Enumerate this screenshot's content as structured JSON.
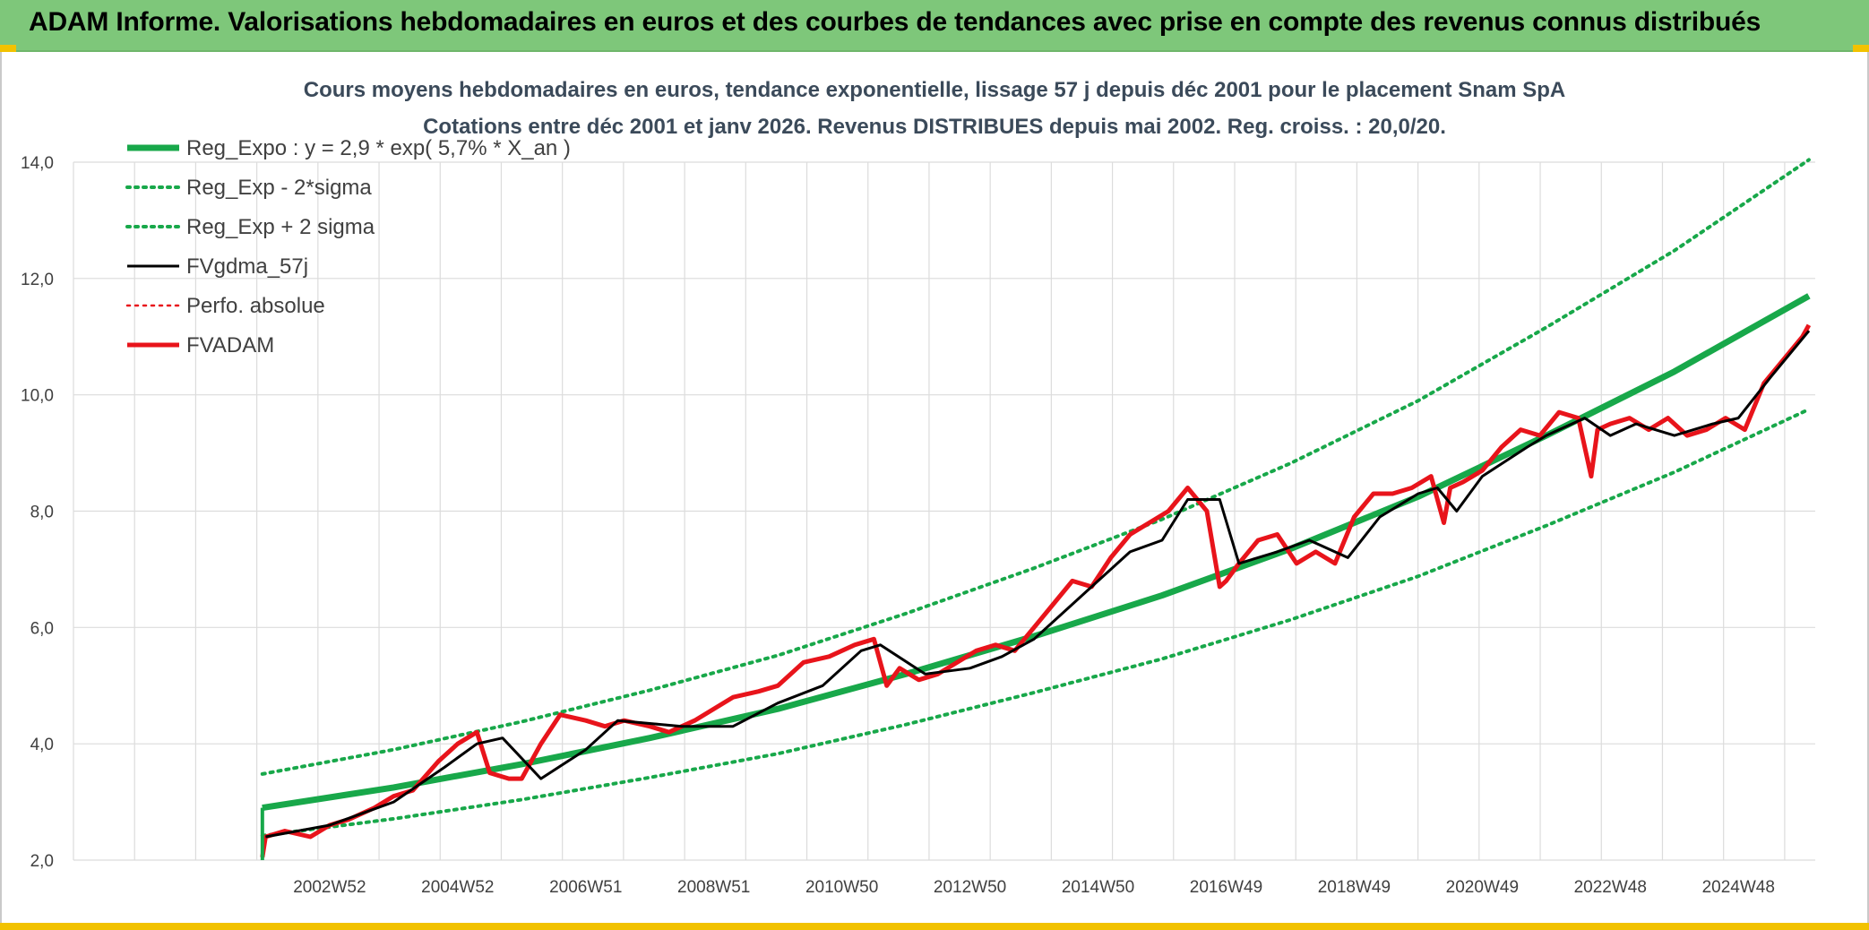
{
  "banner": {
    "title": "ADAM Informe. Valorisations hebdomadaires en euros et des courbes de tendances avec prise en compte des revenus connus distribués"
  },
  "colors": {
    "banner_bg": "#7ec77a",
    "trend": "#18a84a",
    "fvgdma": "#000000",
    "fvadam": "#e8141b",
    "perfo": "#e8141b",
    "grid": "#dcdcdc"
  },
  "chart_data": {
    "type": "line",
    "title": "Cours moyens hebdomadaires en euros, tendance exponentielle, lissage 57 j depuis déc 2001 pour le placement Snam SpA",
    "subtitle": "Cotations entre déc 2001 et janv 2026. Revenus DISTRIBUES depuis mai 2002. Reg. croiss. : 20,0/20.",
    "xlabel": "",
    "ylabel": "",
    "ylim": [
      2.0,
      14.0
    ],
    "xlim": [
      1999.0,
      2026.2
    ],
    "y_ticks": [
      "2,0",
      "4,0",
      "6,0",
      "8,0",
      "10,0",
      "12,0",
      "14,0"
    ],
    "y_tick_values": [
      2,
      4,
      6,
      8,
      10,
      12,
      14
    ],
    "x_ticks": [
      "2002W52",
      "2004W52",
      "2006W51",
      "2008W51",
      "2010W50",
      "2012W50",
      "2014W50",
      "2016W49",
      "2018W49",
      "2020W49",
      "2022W48",
      "2024W48"
    ],
    "x_tick_values": [
      2003.0,
      2005.0,
      2007.0,
      2009.0,
      2011.0,
      2013.0,
      2015.0,
      2017.0,
      2019.0,
      2021.0,
      2023.0,
      2025.0
    ],
    "grid": true,
    "legend_position": "top-left",
    "regression": {
      "a": 2.9,
      "rate": 0.057,
      "start": 2001.95,
      "end": 2026.1,
      "sigma_factor": 1.2
    },
    "series": [
      {
        "name": "Reg_Expo : y = 2,9 * exp( 5,7% *  X_an )",
        "style": "solid-thick",
        "color": "#18a84a",
        "x": [
          2001.95,
          2004.0,
          2006.0,
          2008.0,
          2010.0,
          2012.0,
          2014.0,
          2016.0,
          2018.0,
          2020.0,
          2022.0,
          2024.0,
          2026.1
        ],
        "values": [
          2.9,
          3.25,
          3.65,
          4.1,
          4.6,
          5.2,
          5.85,
          6.55,
          7.35,
          8.25,
          9.3,
          10.4,
          11.7
        ]
      },
      {
        "name": "Reg_Exp - 2*sigma",
        "style": "dotted",
        "color": "#18a84a",
        "x": [
          2001.95,
          2004.0,
          2006.0,
          2008.0,
          2010.0,
          2012.0,
          2014.0,
          2016.0,
          2018.0,
          2020.0,
          2022.0,
          2024.0,
          2026.1
        ],
        "values": [
          2.42,
          2.71,
          3.04,
          3.42,
          3.83,
          4.33,
          4.88,
          5.46,
          6.13,
          6.88,
          7.75,
          8.67,
          9.75
        ]
      },
      {
        "name": "Reg_Exp + 2 sigma",
        "style": "dotted",
        "color": "#18a84a",
        "x": [
          2001.95,
          2004.0,
          2006.0,
          2008.0,
          2010.0,
          2012.0,
          2014.0,
          2016.0,
          2018.0,
          2020.0,
          2022.0,
          2024.0,
          2026.1
        ],
        "values": [
          3.48,
          3.9,
          4.38,
          4.92,
          5.52,
          6.24,
          7.02,
          7.86,
          8.82,
          9.9,
          11.16,
          12.48,
          14.04
        ]
      },
      {
        "name": "FVgdma_57j",
        "style": "solid",
        "color": "#000000",
        "x": [
          2002.0,
          2003.0,
          2004.0,
          2004.8,
          2005.3,
          2005.7,
          2006.3,
          2007.0,
          2007.5,
          2008.5,
          2009.3,
          2010.0,
          2010.7,
          2011.3,
          2011.6,
          2012.3,
          2013.0,
          2013.5,
          2014.0,
          2014.5,
          2015.0,
          2015.5,
          2016.0,
          2016.4,
          2016.9,
          2017.2,
          2017.8,
          2018.3,
          2018.9,
          2019.4,
          2020.0,
          2020.3,
          2020.6,
          2021.0,
          2021.7,
          2022.0,
          2022.6,
          2023.0,
          2023.4,
          2024.0,
          2024.6,
          2025.0,
          2025.5,
          2026.1
        ],
        "values": [
          2.4,
          2.6,
          3.0,
          3.6,
          4.0,
          4.1,
          3.4,
          3.9,
          4.4,
          4.3,
          4.3,
          4.7,
          5.0,
          5.6,
          5.7,
          5.2,
          5.3,
          5.5,
          5.8,
          6.3,
          6.8,
          7.3,
          7.5,
          8.2,
          8.2,
          7.1,
          7.3,
          7.5,
          7.2,
          7.9,
          8.3,
          8.4,
          8.0,
          8.6,
          9.1,
          9.3,
          9.6,
          9.3,
          9.5,
          9.3,
          9.5,
          9.6,
          10.3,
          11.1
        ]
      },
      {
        "name": "Perfo. absolue",
        "style": "dotted",
        "color": "#e8141b",
        "x": [
          2002.0,
          2003.0,
          2004.0,
          2004.8,
          2005.3,
          2005.7,
          2006.3,
          2007.0,
          2007.5,
          2008.5,
          2009.3,
          2010.0,
          2010.7,
          2011.3,
          2011.6,
          2012.3,
          2013.0,
          2013.5,
          2014.0,
          2014.5,
          2015.0,
          2015.5,
          2016.0,
          2016.4,
          2016.9,
          2017.2,
          2017.8,
          2018.3,
          2018.9,
          2019.4,
          2020.0,
          2020.3,
          2020.6,
          2021.0,
          2021.7,
          2022.0,
          2022.6,
          2023.0,
          2023.4,
          2024.0,
          2024.6,
          2025.0,
          2025.5,
          2026.1
        ],
        "values": [
          2.4,
          2.6,
          3.0,
          3.6,
          4.0,
          4.1,
          3.4,
          3.9,
          4.4,
          4.3,
          4.3,
          4.7,
          5.0,
          5.6,
          5.7,
          5.2,
          5.3,
          5.5,
          5.8,
          6.3,
          6.8,
          7.3,
          7.5,
          8.2,
          8.2,
          7.1,
          7.3,
          7.5,
          7.2,
          7.9,
          8.3,
          8.4,
          8.0,
          8.6,
          9.1,
          9.3,
          9.6,
          9.3,
          9.5,
          9.3,
          9.5,
          9.6,
          10.3,
          11.1
        ]
      },
      {
        "name": "FVADAM",
        "style": "solid-thick",
        "color": "#e8141b",
        "x": [
          2001.95,
          2002.0,
          2002.3,
          2002.7,
          2003.0,
          2003.3,
          2003.7,
          2004.0,
          2004.3,
          2004.7,
          2005.0,
          2005.3,
          2005.5,
          2005.8,
          2006.0,
          2006.3,
          2006.6,
          2007.0,
          2007.3,
          2007.6,
          2008.0,
          2008.3,
          2008.7,
          2009.0,
          2009.3,
          2009.7,
          2010.0,
          2010.4,
          2010.8,
          2011.2,
          2011.5,
          2011.7,
          2011.9,
          2012.2,
          2012.5,
          2012.8,
          2013.1,
          2013.4,
          2013.7,
          2014.0,
          2014.3,
          2014.6,
          2014.9,
          2015.2,
          2015.5,
          2015.8,
          2016.1,
          2016.4,
          2016.7,
          2016.9,
          2017.0,
          2017.2,
          2017.5,
          2017.8,
          2018.1,
          2018.4,
          2018.7,
          2019.0,
          2019.3,
          2019.6,
          2019.9,
          2020.2,
          2020.4,
          2020.5,
          2020.7,
          2021.0,
          2021.3,
          2021.6,
          2021.9,
          2022.2,
          2022.5,
          2022.7,
          2022.8,
          2023.0,
          2023.3,
          2023.6,
          2023.9,
          2024.2,
          2024.5,
          2024.8,
          2025.1,
          2025.4,
          2025.7,
          2026.0,
          2026.1
        ],
        "values": [
          2.05,
          2.4,
          2.5,
          2.4,
          2.6,
          2.7,
          2.9,
          3.1,
          3.2,
          3.7,
          4.0,
          4.2,
          3.5,
          3.4,
          3.4,
          4.0,
          4.5,
          4.4,
          4.3,
          4.4,
          4.3,
          4.2,
          4.4,
          4.6,
          4.8,
          4.9,
          5.0,
          5.4,
          5.5,
          5.7,
          5.8,
          5.0,
          5.3,
          5.1,
          5.2,
          5.4,
          5.6,
          5.7,
          5.6,
          6.0,
          6.4,
          6.8,
          6.7,
          7.2,
          7.6,
          7.8,
          8.0,
          8.4,
          8.0,
          6.7,
          6.8,
          7.1,
          7.5,
          7.6,
          7.1,
          7.3,
          7.1,
          7.9,
          8.3,
          8.3,
          8.4,
          8.6,
          7.8,
          8.4,
          8.5,
          8.7,
          9.1,
          9.4,
          9.3,
          9.7,
          9.6,
          8.6,
          9.4,
          9.5,
          9.6,
          9.4,
          9.6,
          9.3,
          9.4,
          9.6,
          9.4,
          10.2,
          10.6,
          11.0,
          11.2
        ]
      }
    ]
  }
}
